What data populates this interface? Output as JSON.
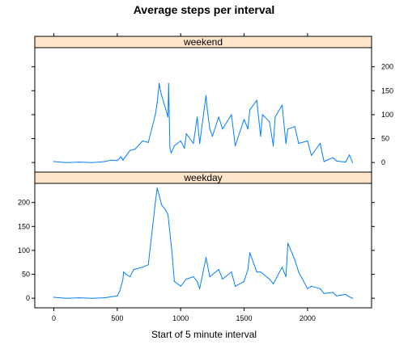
{
  "chart_data": {
    "type": "line",
    "title": "Average steps per interval",
    "xlabel": "Start of 5 minute interval",
    "ylabel": "",
    "xlim": [
      -150,
      2505
    ],
    "ylim": [
      -20,
      240
    ],
    "x_ticks": [
      0,
      500,
      1000,
      1500,
      2000
    ],
    "y_ticks": [
      0,
      50,
      100,
      150,
      200
    ],
    "line_color": "#0080ff",
    "strip_color": "#ffe5cc",
    "panels": [
      {
        "name": "weekend",
        "x": [
          0,
          100,
          200,
          300,
          400,
          450,
          500,
          530,
          545,
          600,
          640,
          700,
          745,
          800,
          815,
          830,
          840,
          850,
          900,
          905,
          915,
          925,
          950,
          1000,
          1030,
          1045,
          1100,
          1130,
          1150,
          1200,
          1210,
          1230,
          1250,
          1300,
          1330,
          1400,
          1430,
          1500,
          1530,
          1545,
          1600,
          1630,
          1645,
          1700,
          1730,
          1745,
          1800,
          1830,
          1845,
          1900,
          1930,
          2000,
          2030,
          2100,
          2130,
          2200,
          2230,
          2300,
          2330,
          2355
        ],
        "y": [
          2,
          0,
          1,
          0,
          2,
          5,
          4,
          12,
          5,
          25,
          28,
          45,
          42,
          100,
          125,
          165,
          150,
          140,
          95,
          165,
          30,
          20,
          35,
          45,
          30,
          60,
          40,
          95,
          40,
          140,
          110,
          70,
          55,
          95,
          70,
          100,
          35,
          90,
          70,
          110,
          130,
          55,
          100,
          85,
          35,
          95,
          120,
          40,
          70,
          75,
          40,
          45,
          15,
          40,
          2,
          10,
          3,
          1,
          16,
          0
        ]
      },
      {
        "name": "weekday",
        "x": [
          0,
          100,
          200,
          300,
          400,
          450,
          500,
          520,
          545,
          550,
          570,
          600,
          630,
          700,
          745,
          800,
          815,
          830,
          840,
          850,
          880,
          900,
          930,
          950,
          1000,
          1045,
          1100,
          1130,
          1150,
          1200,
          1230,
          1300,
          1330,
          1400,
          1430,
          1500,
          1530,
          1545,
          1600,
          1630,
          1700,
          1730,
          1800,
          1830,
          1845,
          1900,
          1930,
          2000,
          2030,
          2100,
          2130,
          2200,
          2230,
          2300,
          2330,
          2355
        ],
        "y": [
          2,
          0,
          1,
          0,
          1,
          3,
          5,
          15,
          40,
          55,
          50,
          45,
          60,
          65,
          70,
          200,
          230,
          215,
          205,
          195,
          185,
          175,
          100,
          35,
          25,
          40,
          45,
          35,
          20,
          85,
          45,
          60,
          40,
          55,
          25,
          35,
          60,
          95,
          55,
          55,
          40,
          30,
          65,
          45,
          115,
          80,
          55,
          20,
          25,
          20,
          10,
          12,
          5,
          8,
          3,
          0
        ]
      }
    ]
  }
}
